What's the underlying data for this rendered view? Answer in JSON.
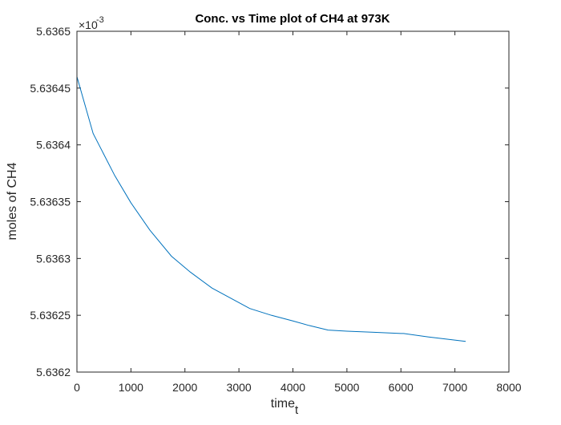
{
  "chart_data": {
    "type": "line",
    "title": "Conc. vs Time plot of CH4 at 973K",
    "xlabel": "time",
    "xlabel_subscript": "t",
    "ylabel": "moles of CH4",
    "y_exponent_label": "×10",
    "y_exponent_power": "-3",
    "xlim": [
      0,
      8000
    ],
    "ylim": [
      5.6362,
      5.6365
    ],
    "x_ticks": [
      "0",
      "1000",
      "2000",
      "3000",
      "4000",
      "5000",
      "6000",
      "7000",
      "8000"
    ],
    "y_ticks": [
      "5.6362",
      "5.63625",
      "5.6363",
      "5.63635",
      "5.6364",
      "5.63645",
      "5.6365"
    ],
    "grid": false,
    "line_color": "#0072BD",
    "series": [
      {
        "x": [
          0,
          300,
          700,
          1000,
          1350,
          1750,
          2100,
          2500,
          2850,
          3200,
          3600,
          4000,
          4300,
          4650,
          5000,
          5500,
          6000,
          6050,
          6500,
          7200
        ],
        "y": [
          5.63646,
          5.63641,
          5.636373,
          5.636349,
          5.636325,
          5.636302,
          5.636288,
          5.636274,
          5.636265,
          5.636256,
          5.63625,
          5.636245,
          5.636241,
          5.636237,
          5.636236,
          5.636235,
          5.636234,
          5.636234,
          5.636231,
          5.636227
        ]
      }
    ]
  }
}
